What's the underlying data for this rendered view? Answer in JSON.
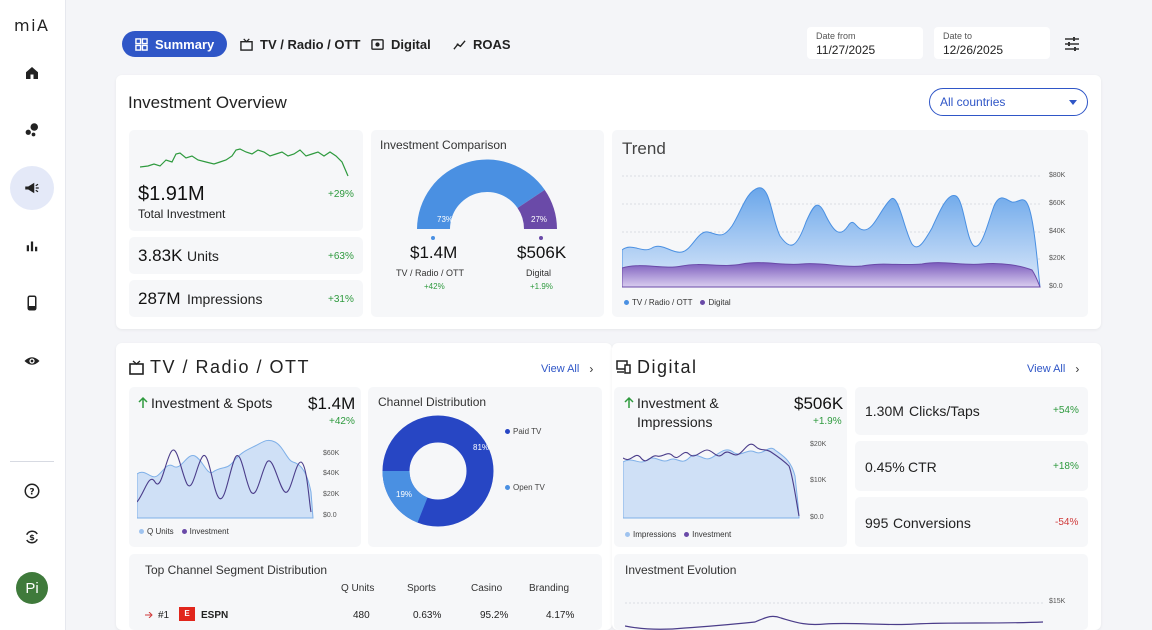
{
  "app": {
    "logo": "miA",
    "avatar_initials": "Pi"
  },
  "sidebar": {
    "items": [
      {
        "name": "home",
        "icon": "home-icon"
      },
      {
        "name": "segments",
        "icon": "bubbles-icon"
      },
      {
        "name": "campaigns",
        "icon": "megaphone-icon",
        "active": true
      },
      {
        "name": "analytics",
        "icon": "bar-chart-icon"
      },
      {
        "name": "mobile",
        "icon": "phone-icon"
      },
      {
        "name": "visibility",
        "icon": "eye-icon"
      },
      {
        "name": "help",
        "icon": "help-icon"
      },
      {
        "name": "currency-sync",
        "icon": "currency-exchange-icon"
      }
    ]
  },
  "tabs": [
    {
      "label": "Summary",
      "active": true
    },
    {
      "label": "TV / Radio / OTT"
    },
    {
      "label": "Digital"
    },
    {
      "label": "ROAS"
    }
  ],
  "dates": {
    "from_label": "Date from",
    "from": "11/27/2025",
    "to_label": "Date to",
    "to": "12/26/2025"
  },
  "overview": {
    "title": "Investment Overview",
    "country_select": "All countries",
    "total": {
      "value": "$1.91M",
      "label": "Total Investment",
      "change": "+29%"
    },
    "units": {
      "value": "3.83K",
      "label": "Units",
      "change": "+63%"
    },
    "impressions": {
      "value": "287M",
      "label": "Impressions",
      "change": "+31%"
    },
    "comparison": {
      "title": "Investment Comparison",
      "left": {
        "pct": "73%",
        "value": "$1.4M",
        "label": "TV / Radio / OTT",
        "change": "+42%"
      },
      "right": {
        "pct": "27%",
        "value": "$506K",
        "label": "Digital",
        "change": "+1.9%"
      }
    },
    "trend": {
      "title": "Trend",
      "ticks": [
        "$80K",
        "$60K",
        "$40K",
        "$20K",
        "$0.0"
      ],
      "legend": [
        "TV / Radio / OTT",
        "Digital"
      ]
    }
  },
  "tv": {
    "title": "TV / Radio / OTT",
    "view_all": "View All",
    "spots": {
      "title": "Investment & Spots",
      "value": "$1.4M",
      "change": "+42%",
      "ticks": [
        "$60K",
        "$40K",
        "$20K",
        "$0.0"
      ],
      "legend": [
        "Q Units",
        "Investment"
      ]
    },
    "channel": {
      "title": "Channel Distribution",
      "paid_pct": "81%",
      "open_pct": "19%",
      "paid_label": "Paid TV",
      "open_label": "Open TV"
    },
    "segments": {
      "title": "Top Channel Segment Distribution",
      "headers": [
        "Q Units",
        "Sports",
        "Casino",
        "Branding"
      ],
      "rows": [
        {
          "rank": "#1",
          "name": "ESPN",
          "q_units": "480",
          "sports": "0.63%",
          "casino": "95.2%",
          "branding": "4.17%"
        }
      ]
    }
  },
  "digital": {
    "title": "Digital",
    "view_all": "View All",
    "impressions": {
      "title_1": "Investment &",
      "title_2": "Impressions",
      "value": "$506K",
      "change": "+1.9%",
      "ticks": [
        "$20K",
        "$10K",
        "$0.0"
      ],
      "legend": [
        "Impressions",
        "Investment"
      ]
    },
    "clicks": {
      "value": "1.30M",
      "label": "Clicks/Taps",
      "change": "+54%"
    },
    "ctr": {
      "value": "0.45%",
      "label": "CTR",
      "change": "+18%"
    },
    "conversions": {
      "value": "995",
      "label": "Conversions",
      "change": "-54%"
    },
    "evolution": {
      "title": "Investment Evolution",
      "tick": "$15K"
    }
  },
  "colors": {
    "accent": "#2f56c7",
    "tv": "#4a90e2",
    "digital": "#6a4aa8",
    "positive": "#2e9a3e",
    "negative": "#d03a3a"
  }
}
